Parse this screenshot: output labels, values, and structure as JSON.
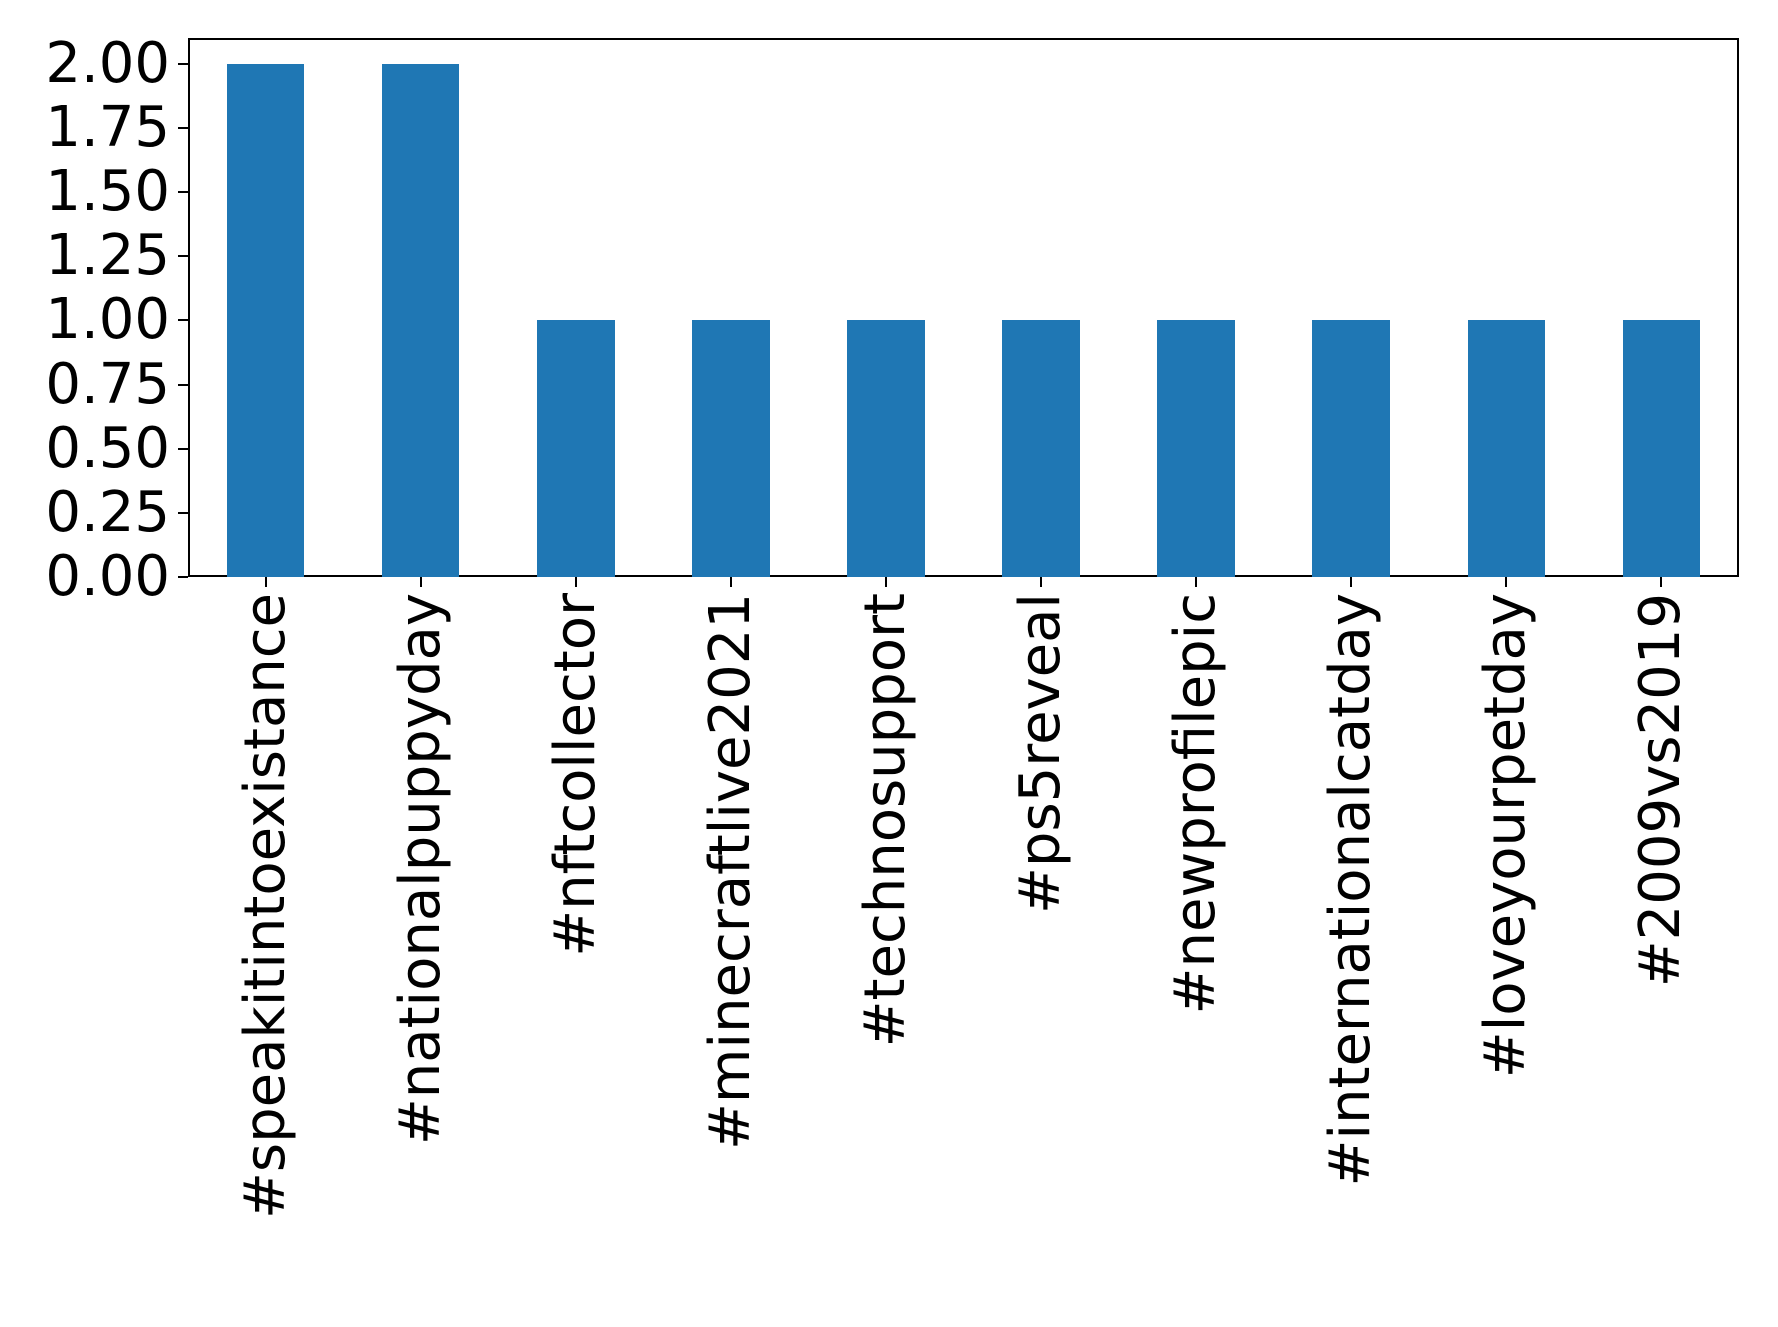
{
  "chart_data": {
    "type": "bar",
    "categories": [
      "#speakitintoexistance",
      "#nationalpuppyday",
      "#nftcollector",
      "#minecraftlive2021",
      "#technosupport",
      "#ps5reveal",
      "#newprofilepic",
      "#internationalcatday",
      "#loveyourpetday",
      "#2009vs2019"
    ],
    "values": [
      2,
      2,
      1,
      1,
      1,
      1,
      1,
      1,
      1,
      1
    ],
    "title": "",
    "xlabel": "",
    "ylabel": "",
    "ylim": [
      0,
      2.1
    ],
    "yticks": [
      0.0,
      0.25,
      0.5,
      0.75,
      1.0,
      1.25,
      1.5,
      1.75,
      2.0
    ],
    "ytick_labels": [
      "0.00",
      "0.25",
      "0.50",
      "0.75",
      "1.00",
      "1.25",
      "1.50",
      "1.75",
      "2.00"
    ],
    "bar_color": "#1f77b4",
    "axis_color": "#000000",
    "background_color": "#ffffff",
    "bar_rel_width": 0.5,
    "grid": false,
    "legend_position": "none",
    "x_label_rotation_deg": 90
  }
}
